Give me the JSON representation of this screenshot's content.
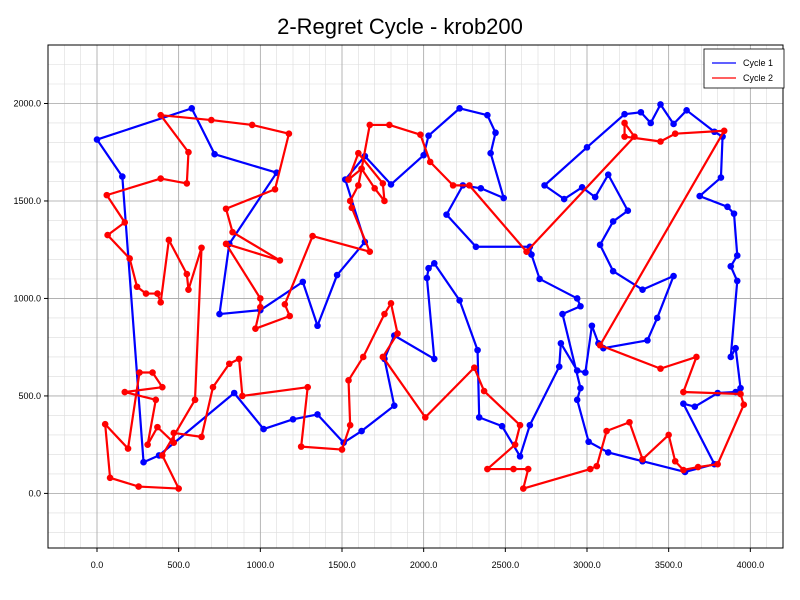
{
  "chart_data": {
    "type": "line",
    "title": "2-Regret Cycle - krob200",
    "xlabel": "",
    "ylabel": "",
    "xlim": [
      -300,
      4200
    ],
    "ylim": [
      -280,
      2300
    ],
    "xticks": [
      0,
      500,
      1000,
      1500,
      2000,
      2500,
      3000,
      3500,
      4000
    ],
    "yticks": [
      0,
      500,
      1000,
      1500,
      2000
    ],
    "xtick_labels": [
      "0.0",
      "500.0",
      "1000.0",
      "1500.0",
      "2000.0",
      "2500.0",
      "3000.0",
      "3500.0",
      "4000.0"
    ],
    "ytick_labels": [
      "0.0",
      "500.0",
      "1000.0",
      "1500.0",
      "2000.0"
    ],
    "grid": true,
    "minor_grid": true,
    "legend_position": "top-right",
    "series": [
      {
        "name": "Cycle 1",
        "color": "#0000ff",
        "closed": true,
        "points": [
          [
            0,
            1815
          ],
          [
            155,
            1625
          ],
          [
            285,
            160
          ],
          [
            380,
            195
          ],
          [
            840,
            515
          ],
          [
            1020,
            330
          ],
          [
            1200,
            380
          ],
          [
            1350,
            405
          ],
          [
            1510,
            260
          ],
          [
            1620,
            320
          ],
          [
            1820,
            450
          ],
          [
            1760,
            690
          ],
          [
            1820,
            810
          ],
          [
            2065,
            690
          ],
          [
            2020,
            1105
          ],
          [
            2030,
            1155
          ],
          [
            2065,
            1180
          ],
          [
            2220,
            990
          ],
          [
            2330,
            735
          ],
          [
            2340,
            390
          ],
          [
            2480,
            345
          ],
          [
            2590,
            190
          ],
          [
            2650,
            350
          ],
          [
            2830,
            650
          ],
          [
            2840,
            770
          ],
          [
            2940,
            630
          ],
          [
            2990,
            620
          ],
          [
            3030,
            860
          ],
          [
            3070,
            770
          ],
          [
            3100,
            745
          ],
          [
            3370,
            785
          ],
          [
            3430,
            900
          ],
          [
            3530,
            1115
          ],
          [
            3340,
            1045
          ],
          [
            3160,
            1140
          ],
          [
            3080,
            1275
          ],
          [
            3160,
            1395
          ],
          [
            3250,
            1450
          ],
          [
            3130,
            1635
          ],
          [
            3050,
            1520
          ],
          [
            2970,
            1570
          ],
          [
            2860,
            1510
          ],
          [
            2740,
            1580
          ],
          [
            3000,
            1775
          ],
          [
            3230,
            1945
          ],
          [
            3330,
            1955
          ],
          [
            3390,
            1900
          ],
          [
            3450,
            1995
          ],
          [
            3530,
            1895
          ],
          [
            3610,
            1965
          ],
          [
            3780,
            1855
          ],
          [
            3830,
            1830
          ],
          [
            3820,
            1620
          ],
          [
            3690,
            1525
          ],
          [
            3860,
            1470
          ],
          [
            3900,
            1435
          ],
          [
            3920,
            1220
          ],
          [
            3880,
            1165
          ],
          [
            3920,
            1090
          ],
          [
            3880,
            700
          ],
          [
            3910,
            745
          ],
          [
            3940,
            540
          ],
          [
            3910,
            520
          ],
          [
            3800,
            515
          ],
          [
            3660,
            445
          ],
          [
            3590,
            460
          ],
          [
            3780,
            150
          ],
          [
            3600,
            110
          ],
          [
            3340,
            165
          ],
          [
            3130,
            210
          ],
          [
            3010,
            265
          ],
          [
            2940,
            480
          ],
          [
            2960,
            540
          ],
          [
            2850,
            920
          ],
          [
            2960,
            960
          ],
          [
            2940,
            1000
          ],
          [
            2710,
            1100
          ],
          [
            2660,
            1225
          ],
          [
            2650,
            1265
          ],
          [
            2320,
            1265
          ],
          [
            2140,
            1430
          ],
          [
            2240,
            1580
          ],
          [
            2350,
            1565
          ],
          [
            2490,
            1515
          ],
          [
            2410,
            1745
          ],
          [
            2440,
            1850
          ],
          [
            2390,
            1940
          ],
          [
            2220,
            1975
          ],
          [
            2030,
            1835
          ],
          [
            2000,
            1735
          ],
          [
            1800,
            1585
          ],
          [
            1640,
            1730
          ],
          [
            1520,
            1610
          ],
          [
            1640,
            1290
          ],
          [
            1470,
            1120
          ],
          [
            1350,
            860
          ],
          [
            1260,
            1085
          ],
          [
            1000,
            940
          ],
          [
            750,
            920
          ],
          [
            810,
            1280
          ],
          [
            1100,
            1645
          ],
          [
            720,
            1740
          ],
          [
            580,
            1975
          ]
        ]
      },
      {
        "name": "Cycle 2",
        "color": "#ff0000",
        "closed": true,
        "points": [
          [
            600,
            480
          ],
          [
            640,
            1260
          ],
          [
            560,
            1045
          ],
          [
            550,
            1125
          ],
          [
            440,
            1300
          ],
          [
            390,
            980
          ],
          [
            370,
            1025
          ],
          [
            300,
            1025
          ],
          [
            245,
            1060
          ],
          [
            200,
            1205
          ],
          [
            65,
            1325
          ],
          [
            170,
            1390
          ],
          [
            60,
            1530
          ],
          [
            390,
            1615
          ],
          [
            550,
            1590
          ],
          [
            560,
            1750
          ],
          [
            390,
            1940
          ],
          [
            700,
            1915
          ],
          [
            950,
            1890
          ],
          [
            1175,
            1845
          ],
          [
            1090,
            1560
          ],
          [
            790,
            1460
          ],
          [
            830,
            1340
          ],
          [
            1120,
            1195
          ],
          [
            790,
            1280
          ],
          [
            1000,
            1000
          ],
          [
            1000,
            955
          ],
          [
            970,
            845
          ],
          [
            1180,
            910
          ],
          [
            1150,
            970
          ],
          [
            1320,
            1320
          ],
          [
            1670,
            1240
          ],
          [
            1560,
            1465
          ],
          [
            1550,
            1500
          ],
          [
            1600,
            1580
          ],
          [
            1620,
            1665
          ],
          [
            1540,
            1610
          ],
          [
            1600,
            1745
          ],
          [
            1750,
            1590
          ],
          [
            1760,
            1500
          ],
          [
            1700,
            1565
          ],
          [
            1620,
            1665
          ],
          [
            1670,
            1890
          ],
          [
            1790,
            1890
          ],
          [
            1980,
            1840
          ],
          [
            2040,
            1700
          ],
          [
            2180,
            1580
          ],
          [
            2280,
            1580
          ],
          [
            2630,
            1240
          ],
          [
            3290,
            1830
          ],
          [
            3230,
            1900
          ],
          [
            3230,
            1830
          ],
          [
            3450,
            1805
          ],
          [
            3540,
            1845
          ],
          [
            3840,
            1860
          ],
          [
            3080,
            760
          ],
          [
            3450,
            640
          ],
          [
            3670,
            700
          ],
          [
            3590,
            520
          ],
          [
            3940,
            510
          ],
          [
            3960,
            455
          ],
          [
            3800,
            150
          ],
          [
            3680,
            135
          ],
          [
            3590,
            120
          ],
          [
            3540,
            165
          ],
          [
            3500,
            300
          ],
          [
            3340,
            175
          ],
          [
            3260,
            365
          ],
          [
            3120,
            320
          ],
          [
            3060,
            140
          ],
          [
            3020,
            125
          ],
          [
            2610,
            25
          ],
          [
            2640,
            125
          ],
          [
            2550,
            125
          ],
          [
            2390,
            125
          ],
          [
            2560,
            250
          ],
          [
            2590,
            350
          ],
          [
            2370,
            525
          ],
          [
            2310,
            645
          ],
          [
            2010,
            390
          ],
          [
            1750,
            700
          ],
          [
            1840,
            820
          ],
          [
            1800,
            975
          ],
          [
            1760,
            920
          ],
          [
            1630,
            700
          ],
          [
            1540,
            580
          ],
          [
            1550,
            350
          ],
          [
            1500,
            225
          ],
          [
            1250,
            240
          ],
          [
            1290,
            545
          ],
          [
            890,
            500
          ],
          [
            870,
            690
          ],
          [
            810,
            665
          ],
          [
            710,
            545
          ],
          [
            640,
            290
          ],
          [
            470,
            310
          ],
          [
            470,
            260
          ],
          [
            370,
            340
          ],
          [
            310,
            250
          ],
          [
            360,
            480
          ],
          [
            170,
            520
          ],
          [
            400,
            545
          ],
          [
            340,
            620
          ],
          [
            260,
            620
          ],
          [
            190,
            230
          ],
          [
            50,
            355
          ],
          [
            80,
            80
          ],
          [
            255,
            35
          ],
          [
            500,
            25
          ],
          [
            400,
            195
          ],
          [
            600,
            480
          ]
        ]
      }
    ]
  }
}
